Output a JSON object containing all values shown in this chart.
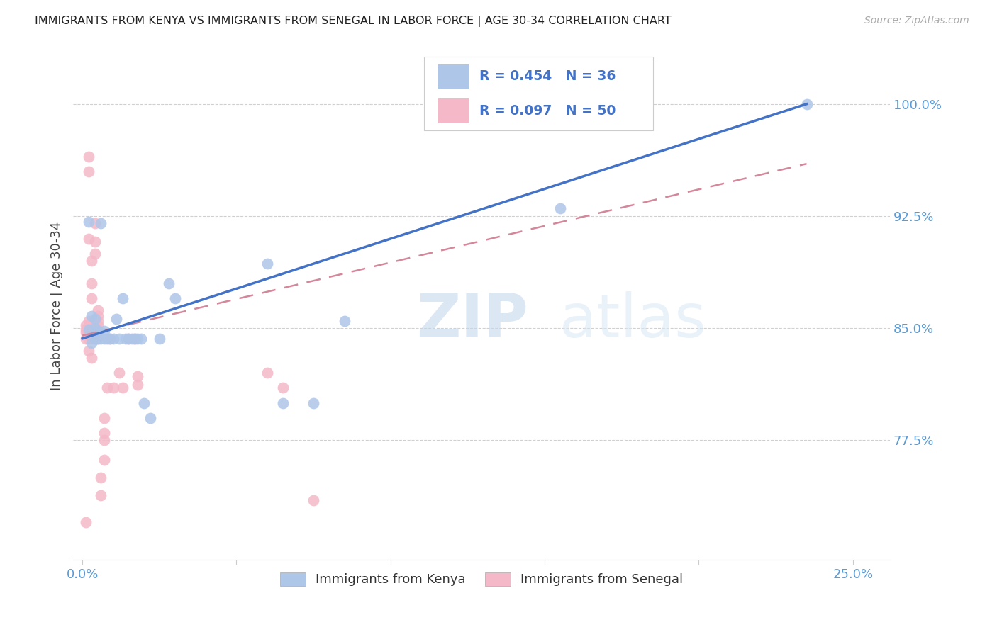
{
  "title": "IMMIGRANTS FROM KENYA VS IMMIGRANTS FROM SENEGAL IN LABOR FORCE | AGE 30-34 CORRELATION CHART",
  "source": "Source: ZipAtlas.com",
  "ylabel": "In Labor Force | Age 30-34",
  "y_tick_labels_right": [
    "77.5%",
    "85.0%",
    "92.5%",
    "100.0%"
  ],
  "y_ticks_right": [
    0.775,
    0.85,
    0.925,
    1.0
  ],
  "xlim": [
    -0.003,
    0.262
  ],
  "ylim": [
    0.695,
    1.035
  ],
  "kenya_R": "R = 0.454",
  "kenya_N": "N = 36",
  "senegal_R": "R = 0.097",
  "senegal_N": "N = 50",
  "kenya_color": "#aec6e8",
  "kenya_line_color": "#4472c4",
  "senegal_color": "#f4b8c8",
  "senegal_line_color": "#d4879a",
  "legend_labels": [
    "Immigrants from Kenya",
    "Immigrants from Senegal"
  ],
  "kenya_line_x0": 0.0,
  "kenya_line_y0": 0.843,
  "kenya_line_x1": 0.235,
  "kenya_line_y1": 1.0,
  "senegal_line_x0": 0.0,
  "senegal_line_y0": 0.845,
  "senegal_line_x1": 0.235,
  "senegal_line_y1": 0.96,
  "kenya_x": [
    0.002,
    0.002,
    0.003,
    0.003,
    0.004,
    0.004,
    0.004,
    0.005,
    0.005,
    0.006,
    0.006,
    0.007,
    0.007,
    0.008,
    0.009,
    0.01,
    0.011,
    0.012,
    0.013,
    0.014,
    0.015,
    0.016,
    0.017,
    0.018,
    0.019,
    0.02,
    0.022,
    0.025,
    0.028,
    0.03,
    0.06,
    0.065,
    0.075,
    0.085,
    0.155,
    0.235
  ],
  "kenya_y": [
    0.849,
    0.921,
    0.84,
    0.858,
    0.843,
    0.85,
    0.856,
    0.843,
    0.848,
    0.843,
    0.92,
    0.843,
    0.848,
    0.843,
    0.843,
    0.843,
    0.856,
    0.843,
    0.87,
    0.843,
    0.843,
    0.843,
    0.843,
    0.843,
    0.843,
    0.8,
    0.79,
    0.843,
    0.88,
    0.87,
    0.893,
    0.8,
    0.8,
    0.855,
    0.93,
    1.0
  ],
  "senegal_x": [
    0.001,
    0.001,
    0.001,
    0.001,
    0.002,
    0.002,
    0.002,
    0.002,
    0.002,
    0.002,
    0.002,
    0.002,
    0.002,
    0.003,
    0.003,
    0.003,
    0.003,
    0.003,
    0.003,
    0.004,
    0.004,
    0.004,
    0.004,
    0.004,
    0.004,
    0.005,
    0.005,
    0.005,
    0.005,
    0.005,
    0.005,
    0.006,
    0.006,
    0.007,
    0.007,
    0.007,
    0.007,
    0.008,
    0.009,
    0.01,
    0.012,
    0.013,
    0.015,
    0.017,
    0.018,
    0.018,
    0.06,
    0.065,
    0.075,
    0.001
  ],
  "senegal_y": [
    0.843,
    0.847,
    0.849,
    0.852,
    0.955,
    0.965,
    0.91,
    0.835,
    0.843,
    0.846,
    0.849,
    0.852,
    0.855,
    0.87,
    0.88,
    0.895,
    0.83,
    0.843,
    0.851,
    0.9,
    0.908,
    0.92,
    0.843,
    0.85,
    0.852,
    0.843,
    0.849,
    0.852,
    0.855,
    0.858,
    0.862,
    0.738,
    0.75,
    0.762,
    0.775,
    0.78,
    0.79,
    0.81,
    0.843,
    0.81,
    0.82,
    0.81,
    0.843,
    0.843,
    0.812,
    0.818,
    0.82,
    0.81,
    0.735,
    0.72
  ]
}
